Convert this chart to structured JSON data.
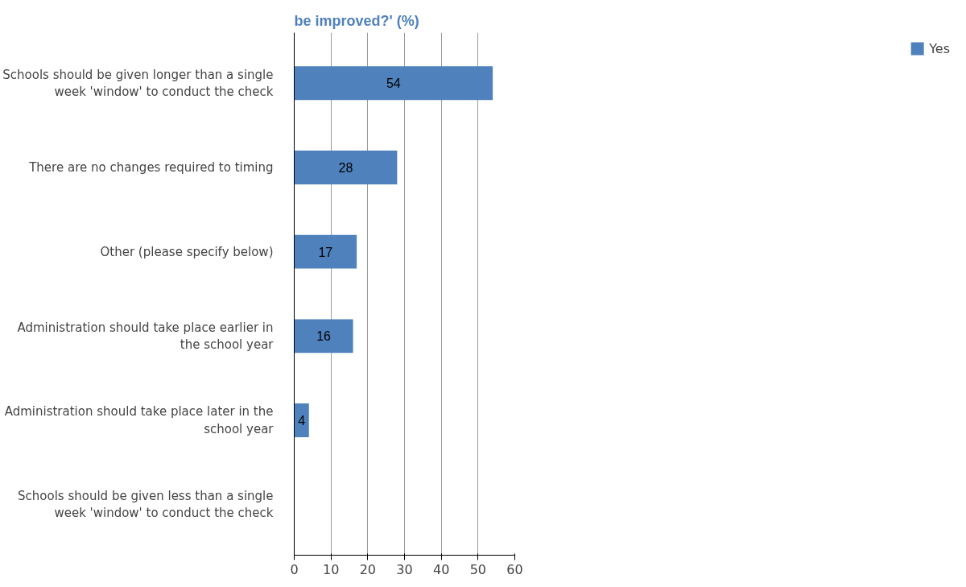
{
  "chart_data": {
    "type": "bar",
    "orientation": "horizontal",
    "title": "be improved?' (%)",
    "categories": [
      "Schools should be given longer than a single week 'window' to conduct the check",
      "There are no changes required to timing",
      "Other (please specify below)",
      "Administration should take place earlier in the school year",
      "Administration should take place later in the school year",
      "Schools should be given less than a single week 'window' to conduct the check"
    ],
    "series": [
      {
        "name": "Yes",
        "color": "#4f81bd",
        "values": [
          54,
          28,
          17,
          16,
          4,
          null
        ]
      }
    ],
    "xlim": [
      0,
      60
    ],
    "xticks": [
      0,
      10,
      20,
      30,
      40,
      50,
      60
    ],
    "grid": "x",
    "legend": "right",
    "data_labels": true
  }
}
